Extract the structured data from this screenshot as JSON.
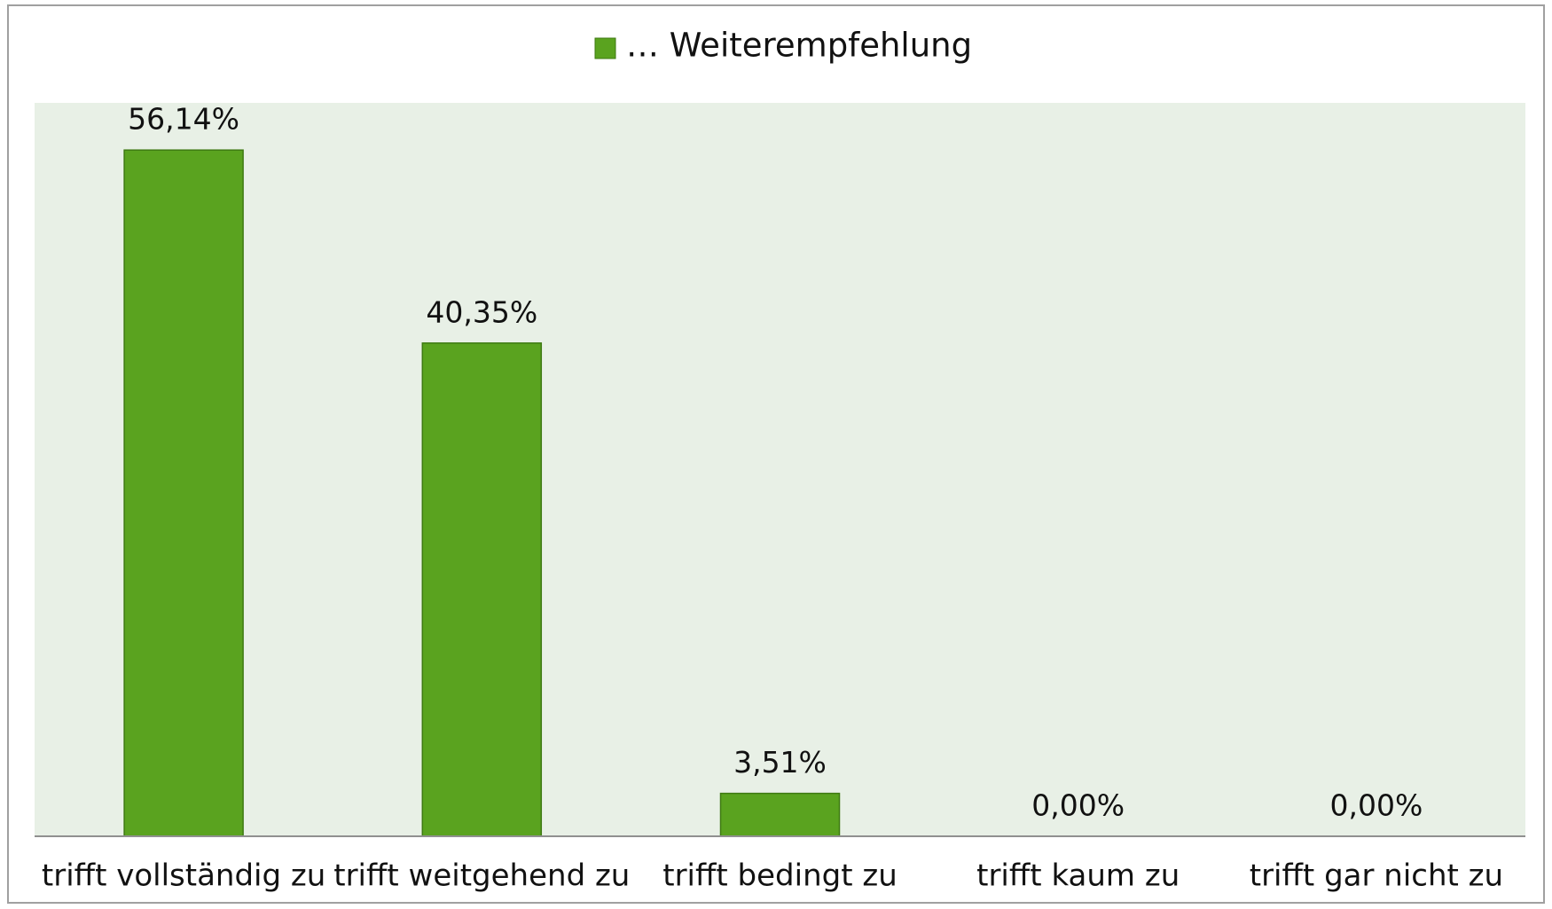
{
  "chart_data": {
    "type": "bar",
    "categories": [
      "trifft vollständig zu",
      "trifft weitgehend zu",
      "trifft bedingt zu",
      "trifft kaum zu",
      "trifft gar nicht zu"
    ],
    "series": [
      {
        "name": "… Weiterempfehlung",
        "color": "#5aa31f",
        "values": [
          56.14,
          40.35,
          3.51,
          0,
          0
        ],
        "value_labels": [
          "56,14%",
          "40,35%",
          "3,51%",
          "0,00%",
          "0,00%"
        ]
      }
    ],
    "ylim": [
      0,
      60
    ]
  }
}
